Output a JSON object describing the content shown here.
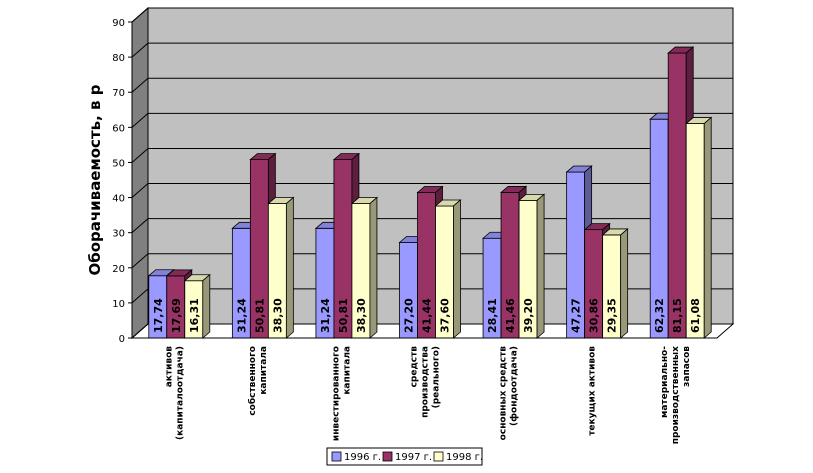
{
  "chart_data": {
    "type": "bar",
    "ylabel": "Оборачиваемость, в р",
    "xlabel": "",
    "ylim": [
      0,
      90
    ],
    "yticks": [
      0,
      10,
      20,
      30,
      40,
      50,
      60,
      70,
      80,
      90
    ],
    "categories": [
      [
        "активов",
        "(капиталоотдача)"
      ],
      [
        "собственного",
        "капитала"
      ],
      [
        "инвестированного",
        "капитала"
      ],
      [
        "средств",
        "производства",
        "(реального)"
      ],
      [
        "основных средств",
        "(фондоотдача)"
      ],
      [
        "текущих активов"
      ],
      [
        "материально-",
        "производственных",
        "запасов"
      ]
    ],
    "series": [
      {
        "name": "1996 г.",
        "values": [
          17.74,
          31.24,
          31.24,
          27.2,
          28.41,
          47.27,
          62.32
        ],
        "labels": [
          "17,74",
          "31,24",
          "31,24",
          "27,20",
          "28,41",
          "47,27",
          "62,32"
        ],
        "color": "#9999FF"
      },
      {
        "name": "1997 г.",
        "values": [
          17.69,
          50.81,
          50.81,
          41.44,
          41.46,
          30.86,
          81.15
        ],
        "labels": [
          "17,69",
          "50,81",
          "50,81",
          "41,44",
          "41,46",
          "30,86",
          "81,15"
        ],
        "color": "#993366"
      },
      {
        "name": "1998 г.",
        "values": [
          16.31,
          38.3,
          38.3,
          37.6,
          39.2,
          29.35,
          61.08
        ],
        "labels": [
          "16,31",
          "38,30",
          "38,30",
          "37,60",
          "39,20",
          "29,35",
          "61,08"
        ],
        "color": "#FFFFCC"
      }
    ],
    "legend_position": "bottom",
    "grid": true,
    "style": "3d"
  }
}
